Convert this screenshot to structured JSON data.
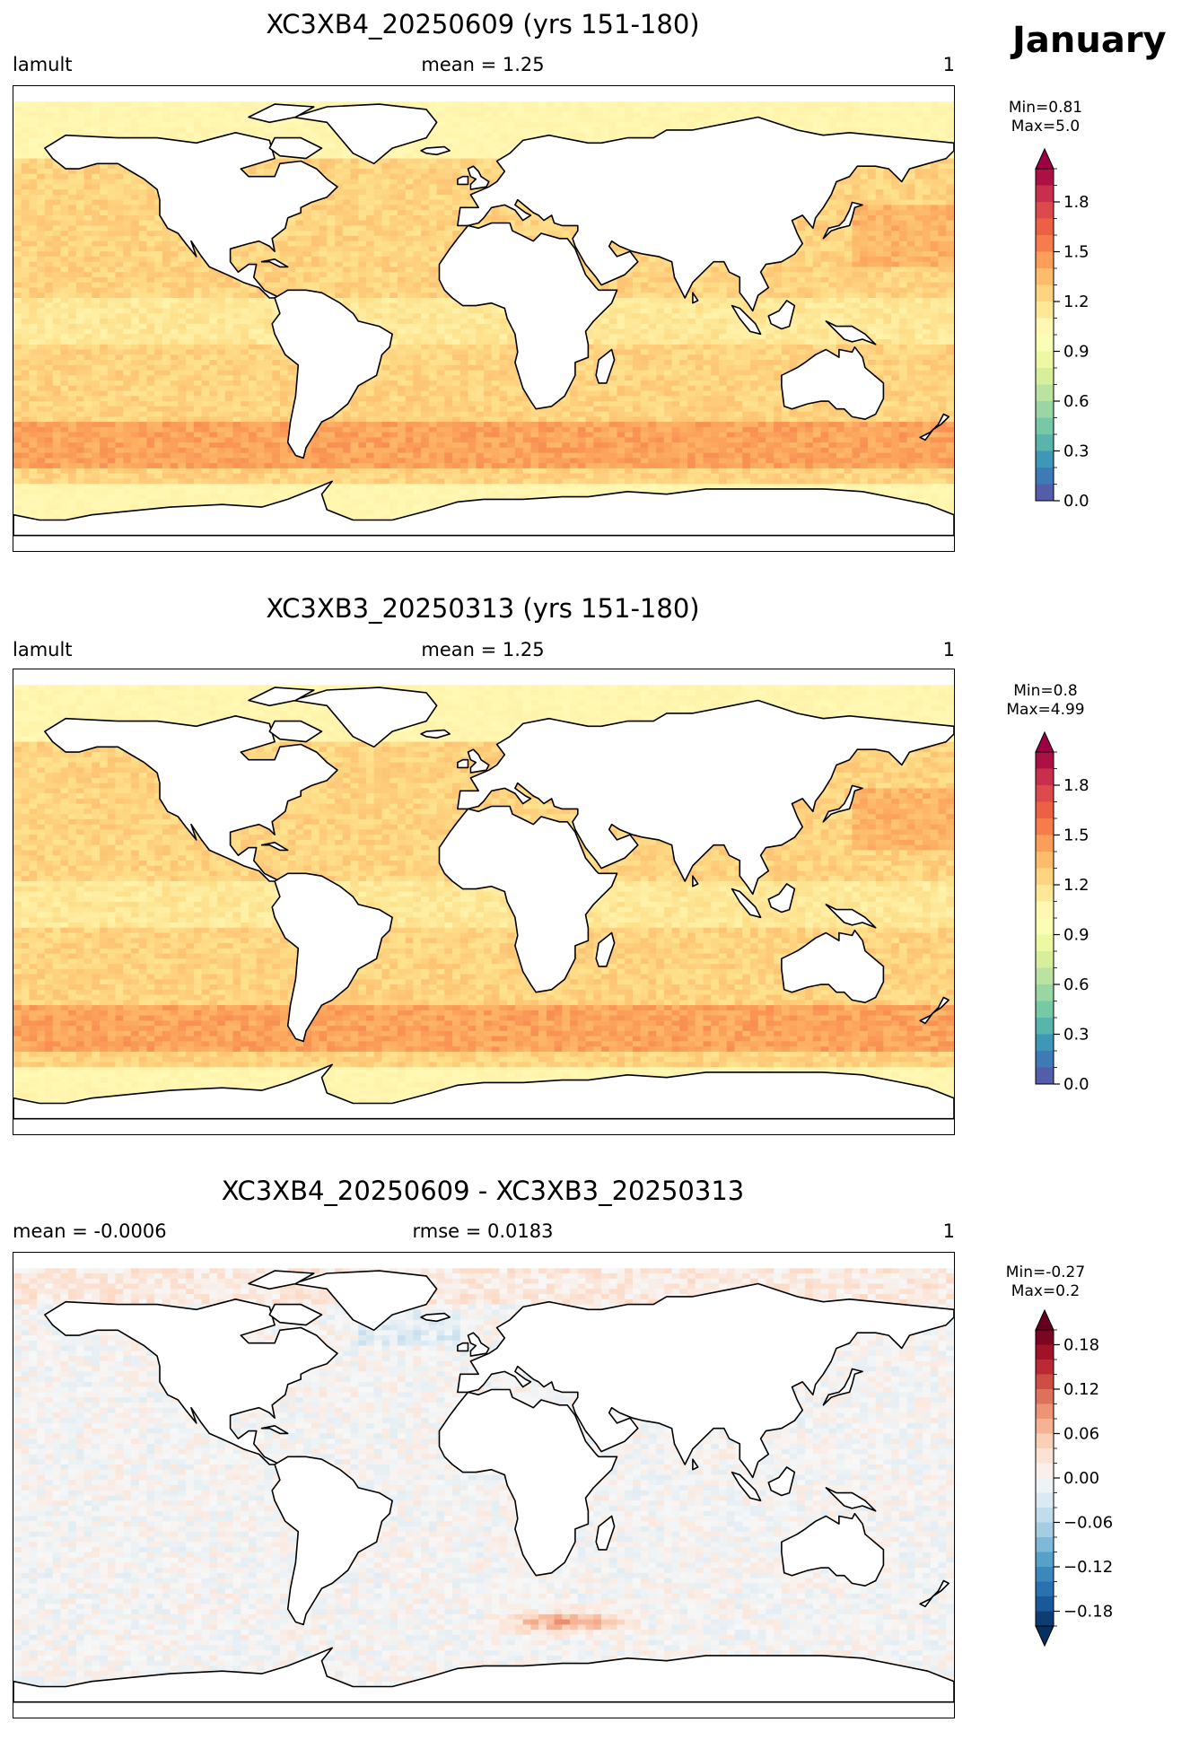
{
  "figure": {
    "month": "January"
  },
  "panels": [
    {
      "id": "p1",
      "title": "XC3XB4_20250609 (yrs 151-180)",
      "left_label": "lamult",
      "center_label": "mean = 1.25",
      "right_label": "1",
      "minmax": [
        "Min=0.81",
        "Max=5.0"
      ],
      "colorbar": {
        "colormap": "Spectral_r",
        "range": [
          0.0,
          2.0
        ],
        "extend": "max",
        "ticks": [
          "0.0",
          "0.3",
          "0.6",
          "0.9",
          "1.2",
          "1.5",
          "1.8"
        ],
        "tick_values": [
          0.0,
          0.3,
          0.6,
          0.9,
          1.2,
          1.5,
          1.8
        ],
        "colors": [
          "#5e4fa2",
          "#3288bd",
          "#66c2a5",
          "#abdda4",
          "#e6f598",
          "#ffffbf",
          "#fee08b",
          "#fdae61",
          "#f46d43",
          "#d53e4f",
          "#9e0142"
        ]
      }
    },
    {
      "id": "p2",
      "title": "XC3XB3_20250313 (yrs 151-180)",
      "left_label": "lamult",
      "center_label": "mean = 1.25",
      "right_label": "1",
      "minmax": [
        "Min=0.8",
        "Max=4.99"
      ],
      "colorbar": {
        "colormap": "Spectral_r",
        "range": [
          0.0,
          2.0
        ],
        "extend": "max",
        "ticks": [
          "0.0",
          "0.3",
          "0.6",
          "0.9",
          "1.2",
          "1.5",
          "1.8"
        ],
        "tick_values": [
          0.0,
          0.3,
          0.6,
          0.9,
          1.2,
          1.5,
          1.8
        ],
        "colors": [
          "#5e4fa2",
          "#3288bd",
          "#66c2a5",
          "#abdda4",
          "#e6f598",
          "#ffffbf",
          "#fee08b",
          "#fdae61",
          "#f46d43",
          "#d53e4f",
          "#9e0142"
        ]
      }
    },
    {
      "id": "p3",
      "title": "XC3XB4_20250609 - XC3XB3_20250313",
      "left_label": "mean = -0.0006",
      "center_label": "rmse = 0.0183",
      "right_label": "1",
      "minmax": [
        "Min=-0.27",
        "Max=0.2"
      ],
      "colorbar": {
        "colormap": "RdBu_r",
        "range": [
          -0.2,
          0.2
        ],
        "extend": "both",
        "ticks": [
          "−0.18",
          "−0.12",
          "−0.06",
          "0.00",
          "0.06",
          "0.12",
          "0.18"
        ],
        "tick_values": [
          -0.18,
          -0.12,
          -0.06,
          0.0,
          0.06,
          0.12,
          0.18
        ],
        "colors": [
          "#053061",
          "#2166ac",
          "#4393c3",
          "#92c5de",
          "#d1e5f0",
          "#f7f7f7",
          "#fddbc7",
          "#f4a582",
          "#d6604d",
          "#b2182b",
          "#67001f"
        ]
      }
    }
  ]
}
